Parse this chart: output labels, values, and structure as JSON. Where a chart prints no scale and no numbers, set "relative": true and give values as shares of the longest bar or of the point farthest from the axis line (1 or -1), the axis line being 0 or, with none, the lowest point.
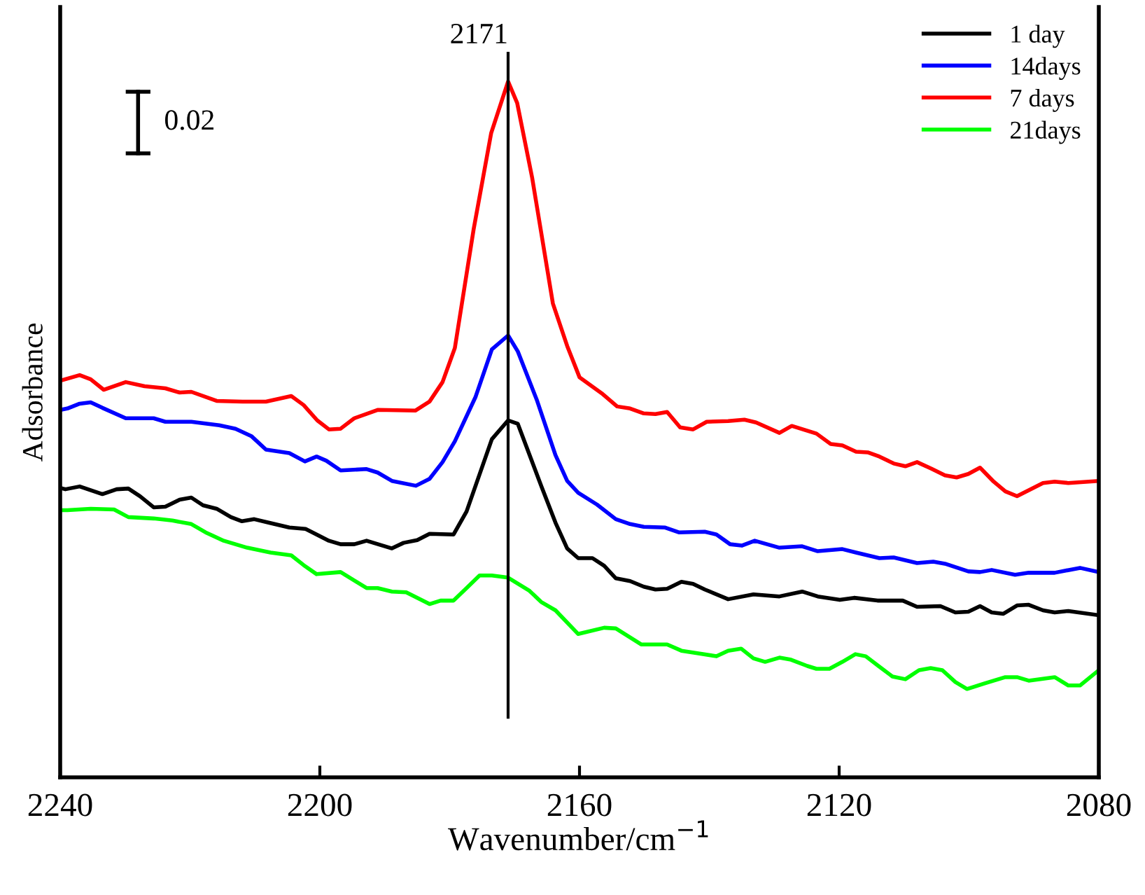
{
  "chart_data": {
    "type": "line",
    "relative": true,
    "xlabel": "Wavenumber/cm$^{−1}$",
    "ylabel": "Adsorbance",
    "xlim": [
      2240,
      2080
    ],
    "xticks": [
      2240,
      2200,
      2160,
      2120,
      2080
    ],
    "grid": false,
    "legend": "top right",
    "marker": "none",
    "line_style": "solid",
    "tick_labels": "x",
    "ref_lines": [
      {
        "axis": "x",
        "value": 2171,
        "label": "2171",
        "color": "#000000"
      }
    ],
    "annotations": [
      "0.02"
    ],
    "series": [
      {
        "name": "1 day",
        "color": "#000000",
        "x": [
          2240,
          2239.2,
          2237.0,
          2233.5,
          2231.3,
          2229.5,
          2227.7,
          2225.6,
          2223.8,
          2221.6,
          2219.8,
          2218.0,
          2215.9,
          2213.7,
          2212.0,
          2210.1,
          2207.9,
          2204.7,
          2202.2,
          2198.6,
          2196.8,
          2194.7,
          2192.8,
          2188.9,
          2187.1,
          2185.0,
          2183.1,
          2179.4,
          2177.4,
          2173.5,
          2171,
          2169.5,
          2165.9,
          2163.7,
          2161.9,
          2160.2,
          2158.0,
          2156.2,
          2154.4,
          2152.2,
          2150.1,
          2148.3,
          2146.5,
          2144.3,
          2142.5,
          2140.7,
          2137.1,
          2133.2,
          2129.2,
          2125.7,
          2123.3,
          2119.9,
          2117.7,
          2114.1,
          2110.2,
          2108.0,
          2104.4,
          2102.1,
          2100.1,
          2098.3,
          2096.5,
          2094.7,
          2092.6,
          2090.8,
          2088.6,
          2086.8,
          2084.7,
          2080
        ],
        "values": [
          0.416,
          0.414,
          0.418,
          0.407,
          0.414,
          0.415,
          0.404,
          0.388,
          0.389,
          0.399,
          0.402,
          0.391,
          0.386,
          0.374,
          0.368,
          0.371,
          0.366,
          0.359,
          0.357,
          0.34,
          0.335,
          0.335,
          0.34,
          0.329,
          0.337,
          0.341,
          0.35,
          0.349,
          0.382,
          0.486,
          0.513,
          0.508,
          0.419,
          0.366,
          0.329,
          0.315,
          0.315,
          0.304,
          0.286,
          0.282,
          0.274,
          0.27,
          0.271,
          0.281,
          0.278,
          0.27,
          0.256,
          0.263,
          0.26,
          0.267,
          0.26,
          0.255,
          0.258,
          0.254,
          0.254,
          0.245,
          0.246,
          0.237,
          0.238,
          0.246,
          0.237,
          0.235,
          0.247,
          0.248,
          0.24,
          0.237,
          0.239,
          0.233
        ]
      },
      {
        "name": "14days",
        "color": "#0000ff",
        "x": [
          2240,
          2238.9,
          2237.0,
          2235.3,
          2233.5,
          2229.9,
          2225.6,
          2223.8,
          2219.8,
          2215.5,
          2213.0,
          2210.5,
          2208.3,
          2204.7,
          2202.3,
          2200.5,
          2199.0,
          2196.8,
          2192.8,
          2191.1,
          2188.9,
          2185.2,
          2183.1,
          2181.1,
          2179.2,
          2176.0,
          2173.5,
          2171,
          2169.5,
          2166.6,
          2163.7,
          2161.9,
          2160.2,
          2157.3,
          2154.4,
          2152.2,
          2150.1,
          2146.8,
          2144.7,
          2140.7,
          2138.9,
          2136.8,
          2135.0,
          2133.0,
          2129.2,
          2125.7,
          2123.3,
          2119.5,
          2117.4,
          2113.8,
          2111.6,
          2108.0,
          2105.5,
          2103.7,
          2100.1,
          2098.3,
          2096.5,
          2092.9,
          2090.8,
          2086.8,
          2082.9,
          2080
        ],
        "values": [
          0.528,
          0.53,
          0.537,
          0.539,
          0.531,
          0.516,
          0.516,
          0.511,
          0.511,
          0.506,
          0.501,
          0.49,
          0.471,
          0.466,
          0.454,
          0.461,
          0.455,
          0.441,
          0.443,
          0.438,
          0.426,
          0.419,
          0.429,
          0.453,
          0.483,
          0.547,
          0.615,
          0.635,
          0.612,
          0.543,
          0.463,
          0.426,
          0.409,
          0.392,
          0.371,
          0.364,
          0.36,
          0.359,
          0.352,
          0.353,
          0.349,
          0.335,
          0.333,
          0.34,
          0.33,
          0.332,
          0.325,
          0.328,
          0.323,
          0.315,
          0.316,
          0.308,
          0.31,
          0.307,
          0.296,
          0.295,
          0.298,
          0.291,
          0.294,
          0.294,
          0.301,
          0.295
        ]
      },
      {
        "name": "7 days",
        "color": "#ff0000",
        "x": [
          2240,
          2237.0,
          2235.3,
          2233.3,
          2229.9,
          2227.0,
          2223.8,
          2221.6,
          2219.8,
          2215.9,
          2211.9,
          2208.3,
          2204.4,
          2202.5,
          2200.4,
          2198.6,
          2196.8,
          2194.7,
          2191.1,
          2185.3,
          2183.1,
          2181.1,
          2179.2,
          2176.3,
          2173.6,
          2171,
          2169.6,
          2167.3,
          2164.1,
          2161.9,
          2160.0,
          2156.6,
          2154.2,
          2152.2,
          2150.1,
          2148.3,
          2146.5,
          2144.5,
          2142.5,
          2140.4,
          2137.1,
          2134.6,
          2132.8,
          2129.2,
          2127.3,
          2123.5,
          2121.3,
          2119.5,
          2117.4,
          2115.6,
          2113.8,
          2111.6,
          2109.8,
          2108.0,
          2105.9,
          2103.7,
          2101.9,
          2100.1,
          2098.3,
          2096.2,
          2094.4,
          2092.6,
          2088.6,
          2086.8,
          2084.7,
          2080
        ],
        "values": [
          0.57,
          0.578,
          0.572,
          0.557,
          0.568,
          0.562,
          0.559,
          0.553,
          0.554,
          0.541,
          0.54,
          0.54,
          0.548,
          0.535,
          0.513,
          0.5,
          0.501,
          0.516,
          0.528,
          0.527,
          0.54,
          0.568,
          0.617,
          0.788,
          0.926,
          1,
          0.969,
          0.862,
          0.681,
          0.62,
          0.575,
          0.552,
          0.533,
          0.53,
          0.523,
          0.522,
          0.525,
          0.503,
          0.5,
          0.511,
          0.512,
          0.514,
          0.51,
          0.495,
          0.505,
          0.494,
          0.479,
          0.477,
          0.468,
          0.467,
          0.461,
          0.451,
          0.447,
          0.453,
          0.444,
          0.434,
          0.431,
          0.436,
          0.445,
          0.425,
          0.411,
          0.404,
          0.423,
          0.425,
          0.423,
          0.426
        ]
      },
      {
        "name": "21days",
        "color": "#00ff00",
        "x": [
          2240,
          2238.9,
          2235.3,
          2231.7,
          2229.5,
          2225.6,
          2222.7,
          2219.8,
          2217.6,
          2214.8,
          2211.2,
          2207.6,
          2204.4,
          2202.5,
          2200.5,
          2196.8,
          2192.8,
          2191.1,
          2188.9,
          2186.7,
          2183.1,
          2181.4,
          2179.4,
          2177.4,
          2175.4,
          2173.5,
          2171,
          2167.7,
          2165.9,
          2163.7,
          2160.2,
          2156.2,
          2154.4,
          2150.5,
          2146.5,
          2144.3,
          2142.2,
          2138.9,
          2137.1,
          2135.1,
          2133.2,
          2131.4,
          2129.2,
          2127.4,
          2124.9,
          2123.5,
          2121.5,
          2119.5,
          2117.5,
          2115.9,
          2113.8,
          2111.8,
          2109.8,
          2107.7,
          2105.9,
          2104.1,
          2102.1,
          2100.3,
          2097.6,
          2094.4,
          2092.6,
          2090.8,
          2086.8,
          2084.7,
          2082.9,
          2080
        ],
        "values": [
          0.384,
          0.384,
          0.386,
          0.385,
          0.374,
          0.372,
          0.369,
          0.364,
          0.352,
          0.34,
          0.33,
          0.323,
          0.319,
          0.305,
          0.292,
          0.295,
          0.272,
          0.272,
          0.267,
          0.266,
          0.249,
          0.254,
          0.254,
          0.272,
          0.29,
          0.29,
          0.287,
          0.268,
          0.252,
          0.24,
          0.206,
          0.215,
          0.214,
          0.191,
          0.191,
          0.182,
          0.179,
          0.174,
          0.182,
          0.185,
          0.171,
          0.166,
          0.172,
          0.169,
          0.16,
          0.156,
          0.156,
          0.166,
          0.177,
          0.174,
          0.159,
          0.145,
          0.141,
          0.154,
          0.157,
          0.154,
          0.137,
          0.127,
          0.135,
          0.144,
          0.144,
          0.139,
          0.144,
          0.132,
          0.132,
          0.154
        ]
      }
    ]
  }
}
